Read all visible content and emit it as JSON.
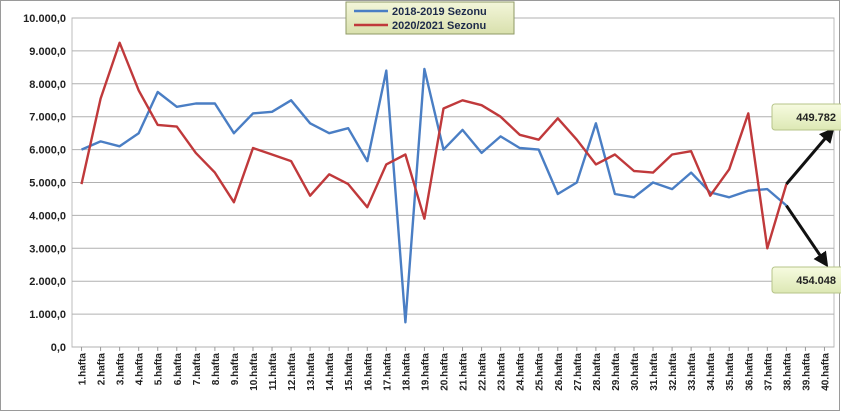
{
  "chart_data": {
    "type": "line",
    "categories": [
      "1.hafta",
      "2.hafta",
      "3.hafta",
      "4.hafta",
      "5.hafta",
      "6.hafta",
      "7.hafta",
      "8.hafta",
      "9.hafta",
      "10.hafta",
      "11.hafta",
      "12.hafta",
      "13.hafta",
      "14.hafta",
      "15.hafta",
      "16.hafta",
      "17.hafta",
      "18.hafta",
      "19.hafta",
      "20.hafta",
      "21.hafta",
      "22.hafta",
      "23.hafta",
      "24.hafta",
      "25.hafta",
      "26.hafta",
      "27.hafta",
      "28.hafta",
      "29.hafta",
      "30.hafta",
      "31.hafta",
      "32.hafta",
      "33.hafta",
      "34.hafta",
      "35.hafta",
      "36.hafta",
      "37.hafta",
      "38.hafta",
      "39.hafta",
      "40.hafta"
    ],
    "series": [
      {
        "name": "2018-2019 Sezonu",
        "color": "#4a7ec4",
        "values": [
          6000,
          6250,
          6100,
          6500,
          7750,
          7300,
          7400,
          7400,
          6500,
          7100,
          7150,
          7500,
          6800,
          6500,
          6650,
          5650,
          8400,
          750,
          8450,
          6000,
          6600,
          5900,
          6400,
          6050,
          6000,
          4650,
          5000,
          6800,
          4650,
          4550,
          5000,
          4800,
          5300,
          4700,
          4550,
          4750,
          4800,
          4300,
          null,
          null
        ]
      },
      {
        "name": "2020/2021 Sezonu",
        "color": "#c0393b",
        "values": [
          4950,
          7550,
          9250,
          7800,
          6750,
          6700,
          5900,
          5300,
          4400,
          6050,
          5850,
          5650,
          4600,
          5250,
          4950,
          4250,
          5550,
          5850,
          3900,
          7250,
          7500,
          7350,
          7000,
          6450,
          6300,
          6950,
          6300,
          5550,
          5850,
          5350,
          5300,
          5850,
          5950,
          4600,
          5400,
          7100,
          3000,
          4950,
          null,
          null
        ]
      }
    ],
    "ylim": [
      0,
      10000
    ],
    "yticks": [
      "0,0",
      "1.000,0",
      "2.000,0",
      "3.000,0",
      "4.000,0",
      "5.000,0",
      "6.000,0",
      "7.000,0",
      "8.000,0",
      "9.000,0",
      "10.000,0"
    ],
    "annotations": [
      {
        "label": "449.782",
        "direction": "up"
      },
      {
        "label": "454.048",
        "direction": "down"
      }
    ],
    "legend_position": "top-center",
    "grid": true
  }
}
